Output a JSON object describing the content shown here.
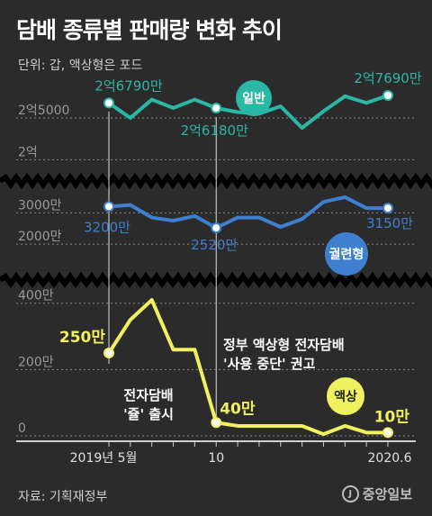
{
  "title": "담배 종류별 판매량 변화 추이",
  "unit_note": "단위: 갑, 액상형은 포드",
  "source": "자료: 기획재정부",
  "logo": {
    "icon": "J",
    "text": "중앙일보"
  },
  "colors": {
    "background": "#2b2b2b",
    "general": "#2bb7a6",
    "heated": "#3f7fd0",
    "liquid": "#f1f060",
    "marker_line": "#dddddd"
  },
  "chart_data": {
    "type": "line",
    "x_labels": [
      "2019년 5월",
      "10",
      "2020.6"
    ],
    "panels": [
      {
        "name": "일반",
        "ticks": [
          {
            "label": "2억5000",
            "value": 250000000
          },
          {
            "label": "2억",
            "value": 200000000
          }
        ],
        "ylim": [
          195000000,
          292000000
        ],
        "values": [
          267900000,
          250000000,
          272000000,
          262000000,
          272000000,
          261800000,
          257000000,
          255000000,
          264000000,
          238000000,
          258000000,
          276000000,
          268000000,
          276900000
        ],
        "labels": [
          {
            "index": 0,
            "text": "2억6790만"
          },
          {
            "index": 5,
            "text": "2억6180만"
          },
          {
            "index": 13,
            "text": "2억7690만"
          }
        ]
      },
      {
        "name": "궐련형",
        "ticks": [
          {
            "label": "3000만",
            "value": 30000000
          },
          {
            "label": "2000만",
            "value": 20000000
          }
        ],
        "ylim": [
          14000000,
          37000000
        ],
        "values": [
          32000000,
          32500000,
          28500000,
          27500000,
          29000000,
          25200000,
          28500000,
          28500000,
          25500000,
          28000000,
          33500000,
          35000000,
          31500000,
          31500000
        ],
        "labels": [
          {
            "index": 0,
            "text": "3200만"
          },
          {
            "index": 5,
            "text": "2520만"
          },
          {
            "index": 13,
            "text": "3150만"
          }
        ]
      },
      {
        "name": "액상",
        "ticks": [
          {
            "label": "400만",
            "value": 4000000
          },
          {
            "label": "200만",
            "value": 2000000
          },
          {
            "label": "0",
            "value": 0
          }
        ],
        "ylim": [
          0,
          4400000
        ],
        "values": [
          2500000,
          3500000,
          4100000,
          2600000,
          2600000,
          400000,
          300000,
          300000,
          300000,
          300000,
          50000,
          300000,
          100000,
          100000
        ],
        "labels": [
          {
            "index": 0,
            "text": "250만"
          },
          {
            "index": 5,
            "text": "40만"
          },
          {
            "index": 13,
            "text": "10만"
          }
        ]
      }
    ],
    "annotations": [
      "전자담배",
      "'쥴' 출시",
      "정부 액상형 전자담배",
      "'사용 중단' 권고"
    ]
  }
}
